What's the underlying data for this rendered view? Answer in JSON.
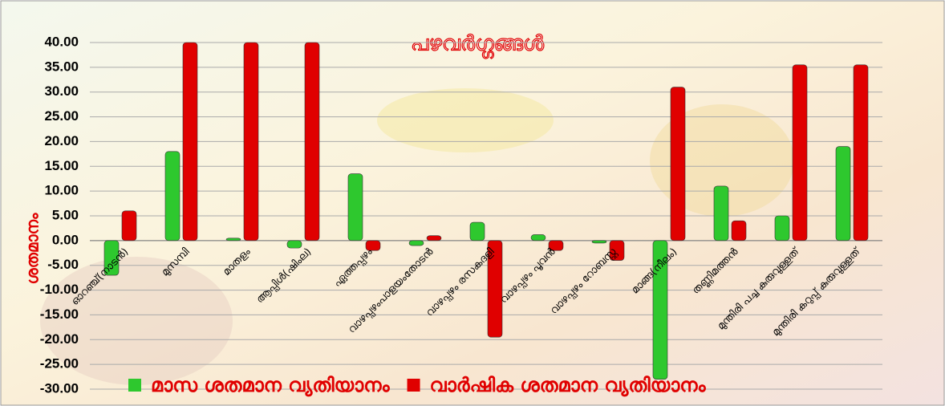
{
  "chart_data": {
    "type": "bar",
    "title": "പഴവർഗ്ഗങ്ങൾ",
    "y_label": "ശതമാനം",
    "categories": [
      "ഓറഞ്ച്(നാടൻ)",
      "മുസമ്പി",
      "മാതളം",
      "ആപ്പിൾ(ഷിംല)",
      "ഏത്തപ്പഴം",
      "വാഴപ്പഴംപാളയംതോടൻ",
      "വാഴപ്പഴം രസകദളി",
      "വാഴപ്പഴം പൂവൻ",
      "വാഴപ്പഴം റോബസ്റ്റ",
      "മാങ്ങ(നീലം)",
      "തണ്ണിമത്തൻ",
      "മുന്തിരി പച്ച കുരുവുള്ളത്",
      "മുന്തിരി കറുപ്പ് കുരുവുള്ളത്"
    ],
    "series": [
      {
        "name": "മാസ ശതമാന വ്യതിയാനം",
        "color": "#2ec82e",
        "values": [
          -7,
          18,
          0.5,
          -1.5,
          13.5,
          -1,
          3.7,
          1.2,
          -0.5,
          -28,
          11,
          5,
          19
        ]
      },
      {
        "name": "വാർഷിക ശതമാന വ്യതിയാനം",
        "color": "#e00000",
        "values": [
          6,
          40,
          40,
          40,
          -2,
          1,
          -19.5,
          -2,
          -4,
          31,
          4,
          35.5,
          35.5
        ]
      }
    ],
    "ylim": [
      -30,
      40
    ],
    "yticks": [
      {
        "value": -30,
        "label": "-30.00"
      },
      {
        "value": -25,
        "label": "-25.00"
      },
      {
        "value": -20,
        "label": "-20.00"
      },
      {
        "value": -15,
        "label": "-15.00"
      },
      {
        "value": -10,
        "label": "-10.00"
      },
      {
        "value": -5,
        "label": "-5.00"
      },
      {
        "value": 0,
        "label": "0.00"
      },
      {
        "value": 5,
        "label": "5.00"
      },
      {
        "value": 10,
        "label": "10.00"
      },
      {
        "value": 15,
        "label": "15.00"
      },
      {
        "value": 20,
        "label": "20.00"
      },
      {
        "value": 25,
        "label": "25.00"
      },
      {
        "value": 30,
        "label": "30.00"
      },
      {
        "value": 35,
        "label": "35.00"
      },
      {
        "value": 40,
        "label": "40.00"
      }
    ],
    "grid": true
  }
}
